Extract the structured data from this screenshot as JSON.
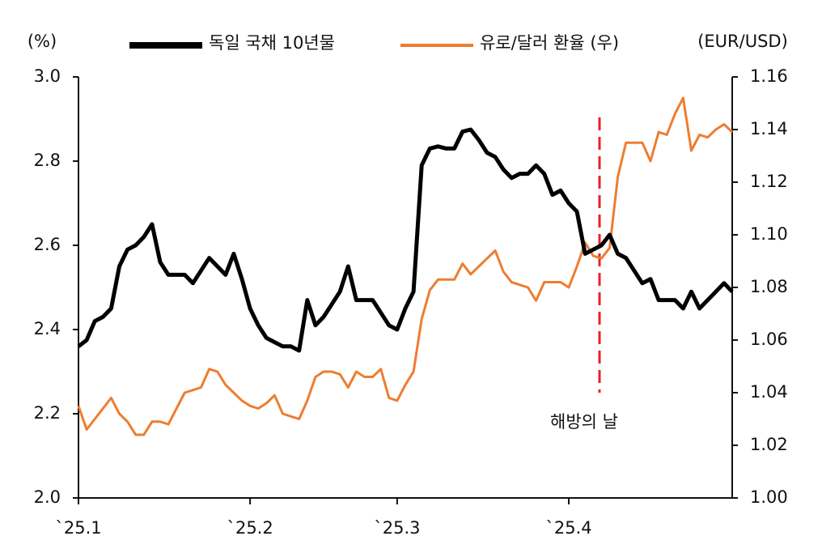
{
  "chart_data": {
    "type": "line",
    "y_unit": "(%)",
    "y2_unit": "(EUR/USD)",
    "annotation": "해방의 날",
    "categories": [
      "`25.1",
      null,
      null,
      null,
      null,
      null,
      null,
      null,
      null,
      null,
      null,
      null,
      null,
      null,
      null,
      null,
      null,
      null,
      null,
      null,
      null,
      "`25.2",
      null,
      null,
      null,
      null,
      null,
      null,
      null,
      null,
      null,
      null,
      null,
      null,
      null,
      null,
      null,
      null,
      null,
      "`25.3",
      null,
      null,
      null,
      null,
      null,
      null,
      null,
      null,
      null,
      null,
      null,
      null,
      null,
      null,
      null,
      null,
      null,
      null,
      null,
      null,
      "`25.4",
      null,
      null,
      null,
      null,
      null,
      null,
      null,
      null,
      null,
      null,
      null,
      null,
      null,
      null,
      null,
      null,
      null,
      null,
      null,
      null
    ],
    "series": [
      {
        "name": "독일 국채 10년물",
        "color": "#000000",
        "axis": "y",
        "values": [
          2.36,
          2.375,
          2.42,
          2.43,
          2.45,
          2.55,
          2.59,
          2.6,
          2.62,
          2.65,
          2.56,
          2.53,
          2.53,
          2.53,
          2.51,
          2.54,
          2.57,
          2.55,
          2.53,
          2.58,
          2.52,
          2.45,
          2.41,
          2.38,
          2.37,
          2.36,
          2.36,
          2.35,
          2.47,
          2.41,
          2.43,
          2.46,
          2.49,
          2.55,
          2.47,
          2.47,
          2.47,
          2.44,
          2.41,
          2.4,
          2.45,
          2.49,
          2.79,
          2.83,
          2.835,
          2.83,
          2.83,
          2.87,
          2.875,
          2.85,
          2.82,
          2.81,
          2.78,
          2.76,
          2.77,
          2.77,
          2.79,
          2.77,
          2.72,
          2.73,
          2.7,
          2.68,
          2.58,
          2.59,
          2.6,
          2.625,
          2.58,
          2.57,
          2.54,
          2.51,
          2.52,
          2.47,
          2.47,
          2.47,
          2.45,
          2.49,
          2.45,
          2.47,
          2.49,
          2.51,
          2.49
        ]
      },
      {
        "name": "유로/달러 환율 (우)",
        "color": "#ed7d31",
        "axis": "y2",
        "values": [
          1.035,
          1.026,
          1.03,
          1.034,
          1.038,
          1.032,
          1.029,
          1.024,
          1.024,
          1.029,
          1.029,
          1.028,
          1.034,
          1.04,
          1.041,
          1.042,
          1.049,
          1.048,
          1.043,
          1.04,
          1.037,
          1.035,
          1.034,
          1.036,
          1.039,
          1.032,
          1.031,
          1.03,
          1.037,
          1.046,
          1.048,
          1.048,
          1.047,
          1.042,
          1.048,
          1.046,
          1.046,
          1.049,
          1.038,
          1.037,
          1.043,
          1.048,
          1.068,
          1.079,
          1.083,
          1.083,
          1.083,
          1.089,
          1.085,
          1.088,
          1.091,
          1.094,
          1.086,
          1.082,
          1.081,
          1.08,
          1.075,
          1.082,
          1.082,
          1.082,
          1.08,
          1.088,
          1.097,
          1.092,
          1.091,
          1.095,
          1.122,
          1.135,
          1.135,
          1.135,
          1.128,
          1.139,
          1.138,
          1.146,
          1.152,
          1.132,
          1.138,
          1.137,
          1.14,
          1.142,
          1.139
        ]
      }
    ],
    "ylim": [
      2.0,
      3.0
    ],
    "yticks": [
      {
        "value": 2,
        "label": "2.0"
      },
      2.2,
      2.4,
      2.6,
      2.8,
      {
        "value": 3,
        "label": "3.0"
      }
    ],
    "y2lim": [
      1.0,
      1.16
    ],
    "y2ticks": [
      {
        "value": 1,
        "label": "1.00"
      },
      1.02,
      1.04,
      1.06,
      1.08,
      {
        "value": 1.1,
        "label": "1.10"
      },
      1.12,
      1.14,
      1.16
    ],
    "grid": false,
    "legend": "top"
  }
}
